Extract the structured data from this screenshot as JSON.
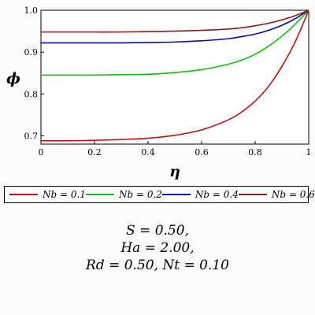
{
  "chart_data": {
    "type": "line",
    "title": "",
    "xlabel": "η",
    "ylabel": "ϕ",
    "xlim": [
      0,
      1
    ],
    "ylim": [
      0.68,
      1.0
    ],
    "xticks": [
      "0",
      "0.2",
      "0.4",
      "0.6",
      "0.8",
      "1"
    ],
    "yticks": [
      "0.7",
      "0.8",
      "0.9",
      "1.0"
    ],
    "grid": false,
    "legend_position": "below",
    "x": [
      0,
      0.1,
      0.2,
      0.3,
      0.4,
      0.5,
      0.6,
      0.7,
      0.75,
      0.8,
      0.85,
      0.9,
      0.95,
      1.0
    ],
    "series": [
      {
        "name": "Nb = 0.1",
        "color": "#c01010",
        "values": [
          0.688,
          0.688,
          0.689,
          0.691,
          0.694,
          0.701,
          0.714,
          0.738,
          0.757,
          0.783,
          0.818,
          0.866,
          0.925,
          1.0
        ]
      },
      {
        "name": "Nb = 0.2",
        "color": "#10c010",
        "values": [
          0.845,
          0.845,
          0.845,
          0.846,
          0.847,
          0.851,
          0.858,
          0.871,
          0.881,
          0.895,
          0.914,
          0.938,
          0.967,
          1.0
        ]
      },
      {
        "name": "Nb = 0.4",
        "color": "#0a0aa8",
        "values": [
          0.922,
          0.922,
          0.922,
          0.922,
          0.923,
          0.924,
          0.927,
          0.932,
          0.937,
          0.943,
          0.952,
          0.964,
          0.98,
          1.0
        ]
      },
      {
        "name": "Nb = 0.6",
        "color": "#8b1a1a",
        "values": [
          0.948,
          0.948,
          0.948,
          0.948,
          0.949,
          0.95,
          0.952,
          0.955,
          0.958,
          0.963,
          0.969,
          0.977,
          0.987,
          1.0
        ]
      }
    ]
  },
  "params": {
    "line1": "S = 0.50,",
    "line2": "Ha = 2.00,",
    "line3": "Rd = 0.50, Nt = 0.10"
  }
}
